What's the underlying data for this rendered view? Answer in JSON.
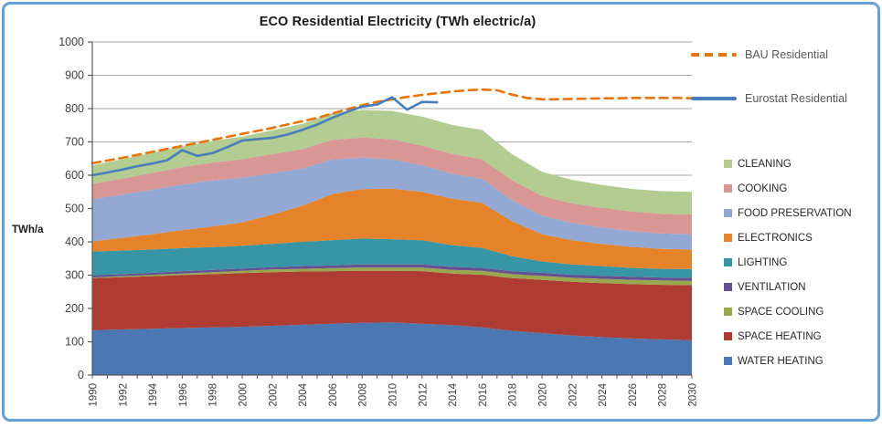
{
  "frame": {
    "border_color": "#64A0D8"
  },
  "chart_data": {
    "type": "area",
    "title": "ECO Residential Electricity (TWh electric/a)",
    "ylabel": "TWh/a",
    "ylim": [
      0,
      1000
    ],
    "y_ticks": [
      0,
      100,
      200,
      300,
      400,
      500,
      600,
      700,
      800,
      900,
      1000
    ],
    "x_range": [
      1990,
      2030
    ],
    "x_labels": [
      "1990",
      "1992",
      "1994",
      "1996",
      "1998",
      "2000",
      "2002",
      "2004",
      "2006",
      "2008",
      "2010",
      "2012",
      "2014",
      "2016",
      "2018",
      "2020",
      "2022",
      "2024",
      "2026",
      "2028",
      "2030"
    ],
    "x_label_step": 2,
    "grid": true,
    "gridline_color": "#A6A6A6",
    "axis_color": "#595959",
    "legend_position": "right",
    "stack_series": [
      {
        "name": "WATER HEATING",
        "color": "#4B77B3",
        "values": [
          135,
          137,
          139,
          141,
          143,
          145,
          148,
          151,
          154,
          157,
          158,
          154,
          150,
          143,
          133,
          126,
          119,
          114,
          110,
          107,
          105
        ]
      },
      {
        "name": "SPACE HEATING",
        "color": "#AE3C32",
        "values": [
          156,
          157,
          158,
          159,
          160,
          161,
          161,
          160,
          158,
          156,
          155,
          158,
          155,
          158,
          158,
          160,
          161,
          162,
          163,
          164,
          165
        ]
      },
      {
        "name": "SPACE COOLING",
        "color": "#99A84D",
        "values": [
          2,
          3,
          4,
          5,
          6,
          7,
          8,
          8,
          9,
          10,
          10,
          11,
          11,
          12,
          12,
          12,
          12,
          13,
          13,
          13,
          13
        ]
      },
      {
        "name": "VENTILATION",
        "color": "#645191",
        "values": [
          6,
          6,
          6,
          7,
          7,
          7,
          7,
          8,
          8,
          9,
          9,
          9,
          9,
          9,
          9,
          9,
          9,
          9,
          9,
          9,
          9
        ]
      },
      {
        "name": "LIGHTING",
        "color": "#3795A5",
        "values": [
          72,
          71,
          70,
          69,
          68,
          68,
          70,
          73,
          76,
          78,
          76,
          73,
          65,
          60,
          45,
          34,
          31,
          29,
          27,
          26,
          26
        ]
      },
      {
        "name": "ELECTRONICS",
        "color": "#E5832A",
        "values": [
          30,
          38,
          46,
          54,
          62,
          70,
          88,
          108,
          138,
          148,
          152,
          145,
          140,
          135,
          105,
          82,
          73,
          67,
          63,
          60,
          59
        ]
      },
      {
        "name": "FOOD PRESERVATION",
        "color": "#93A9D4",
        "values": [
          127,
          130,
          134,
          137,
          138,
          134,
          124,
          112,
          104,
          95,
          88,
          80,
          75,
          72,
          64,
          56,
          52,
          49,
          47,
          46,
          46
        ]
      },
      {
        "name": "COOKING",
        "color": "#D89695",
        "values": [
          46,
          48,
          50,
          52,
          54,
          56,
          57,
          58,
          59,
          60,
          60,
          59,
          59,
          59,
          59,
          59,
          59,
          59,
          59,
          59,
          59
        ]
      },
      {
        "name": "CLEANING",
        "color": "#B2CC92",
        "values": [
          56,
          58,
          60,
          62,
          65,
          68,
          72,
          76,
          80,
          83,
          85,
          87,
          87,
          88,
          78,
          72,
          70,
          69,
          68,
          68,
          68
        ]
      }
    ],
    "stack_x_step": 2,
    "lines": [
      {
        "name": "BAU Residential",
        "color": "#E8740C",
        "dashed": true,
        "start_year": 1990,
        "year_step": 1,
        "values": [
          636,
          644,
          652,
          661,
          670,
          679,
          688,
          697,
          706,
          715,
          724,
          733,
          742,
          752,
          762,
          772,
          785,
          798,
          810,
          820,
          828,
          835,
          841,
          846,
          851,
          855,
          857,
          855,
          842,
          832,
          828,
          828,
          829,
          830,
          831,
          831,
          832,
          832,
          832,
          832,
          831
        ]
      },
      {
        "name": "Eurostat Residential",
        "color": "#4A7EBB",
        "dashed": false,
        "start_year": 1990,
        "year_step": 1,
        "values": [
          600,
          608,
          617,
          627,
          635,
          645,
          675,
          658,
          666,
          684,
          704,
          708,
          712,
          722,
          736,
          752,
          772,
          790,
          806,
          812,
          834,
          797,
          820,
          819
        ]
      }
    ]
  }
}
